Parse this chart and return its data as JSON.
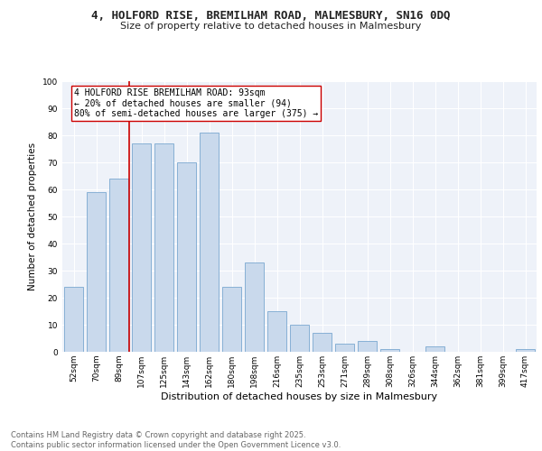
{
  "title": "4, HOLFORD RISE, BREMILHAM ROAD, MALMESBURY, SN16 0DQ",
  "subtitle": "Size of property relative to detached houses in Malmesbury",
  "xlabel": "Distribution of detached houses by size in Malmesbury",
  "ylabel": "Number of detached properties",
  "categories": [
    "52sqm",
    "70sqm",
    "89sqm",
    "107sqm",
    "125sqm",
    "143sqm",
    "162sqm",
    "180sqm",
    "198sqm",
    "216sqm",
    "235sqm",
    "253sqm",
    "271sqm",
    "289sqm",
    "308sqm",
    "326sqm",
    "344sqm",
    "362sqm",
    "381sqm",
    "399sqm",
    "417sqm"
  ],
  "values": [
    24,
    59,
    64,
    77,
    77,
    70,
    81,
    24,
    33,
    15,
    10,
    7,
    3,
    4,
    1,
    0,
    2,
    0,
    0,
    0,
    1
  ],
  "bar_color": "#c9d9ec",
  "bar_edge_color": "#7aa8d0",
  "vline_x_index": 2,
  "vline_color": "#cc0000",
  "annotation_lines": [
    "4 HOLFORD RISE BREMILHAM ROAD: 93sqm",
    "← 20% of detached houses are smaller (94)",
    "80% of semi-detached houses are larger (375) →"
  ],
  "ylim": [
    0,
    100
  ],
  "yticks": [
    0,
    10,
    20,
    30,
    40,
    50,
    60,
    70,
    80,
    90,
    100
  ],
  "background_color": "#eef2f9",
  "grid_color": "#ffffff",
  "footer_line1": "Contains HM Land Registry data © Crown copyright and database right 2025.",
  "footer_line2": "Contains public sector information licensed under the Open Government Licence v3.0.",
  "title_fontsize": 9,
  "subtitle_fontsize": 8,
  "axis_label_fontsize": 7.5,
  "tick_fontsize": 6.5,
  "annotation_fontsize": 7,
  "footer_fontsize": 6
}
